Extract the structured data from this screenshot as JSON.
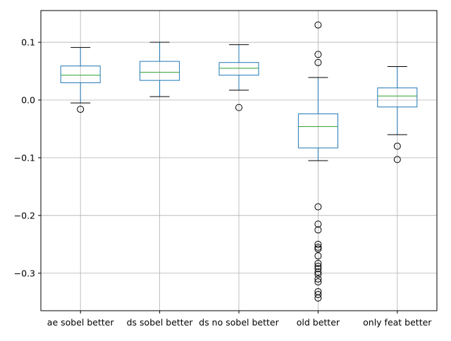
{
  "chart_data": {
    "type": "box",
    "title": "",
    "xlabel": "",
    "ylabel": "",
    "ylim": [
      -0.365,
      0.155
    ],
    "yticks": [
      -0.3,
      -0.2,
      -0.1,
      0.0,
      0.1
    ],
    "ytick_labels": [
      "−0.3",
      "−0.2",
      "−0.1",
      "0.0",
      "0.1"
    ],
    "grid": true,
    "colors": {
      "box": "#1f77b4",
      "median": "#2ca02c",
      "whisker_cap": "#000000",
      "grid": "#b0b0b0",
      "outlier": "#000000"
    },
    "categories": [
      "ae sobel better",
      "ds sobel better",
      "ds no sobel better",
      "old better",
      "only feat better"
    ],
    "boxes": [
      {
        "label": "ae sobel better",
        "whislo": -0.005,
        "q1": 0.03,
        "med": 0.043,
        "q3": 0.059,
        "whishi": 0.091,
        "fliers": [
          -0.016
        ]
      },
      {
        "label": "ds sobel better",
        "whislo": 0.006,
        "q1": 0.034,
        "med": 0.048,
        "q3": 0.067,
        "whishi": 0.1,
        "fliers": []
      },
      {
        "label": "ds no sobel better",
        "whislo": 0.017,
        "q1": 0.043,
        "med": 0.055,
        "q3": 0.065,
        "whishi": 0.096,
        "fliers": [
          -0.013
        ]
      },
      {
        "label": "old better",
        "whislo": -0.105,
        "q1": -0.083,
        "med": -0.046,
        "q3": -0.024,
        "whishi": 0.039,
        "fliers": [
          0.13,
          0.079,
          0.065,
          -0.185,
          -0.215,
          -0.225,
          -0.25,
          -0.255,
          -0.258,
          -0.27,
          -0.283,
          -0.288,
          -0.292,
          -0.298,
          -0.302,
          -0.31,
          -0.315,
          -0.332,
          -0.337,
          -0.343
        ]
      },
      {
        "label": "only feat better",
        "whislo": -0.06,
        "q1": -0.012,
        "med": 0.007,
        "q3": 0.021,
        "whishi": 0.058,
        "fliers": [
          -0.08,
          -0.103
        ]
      }
    ]
  }
}
